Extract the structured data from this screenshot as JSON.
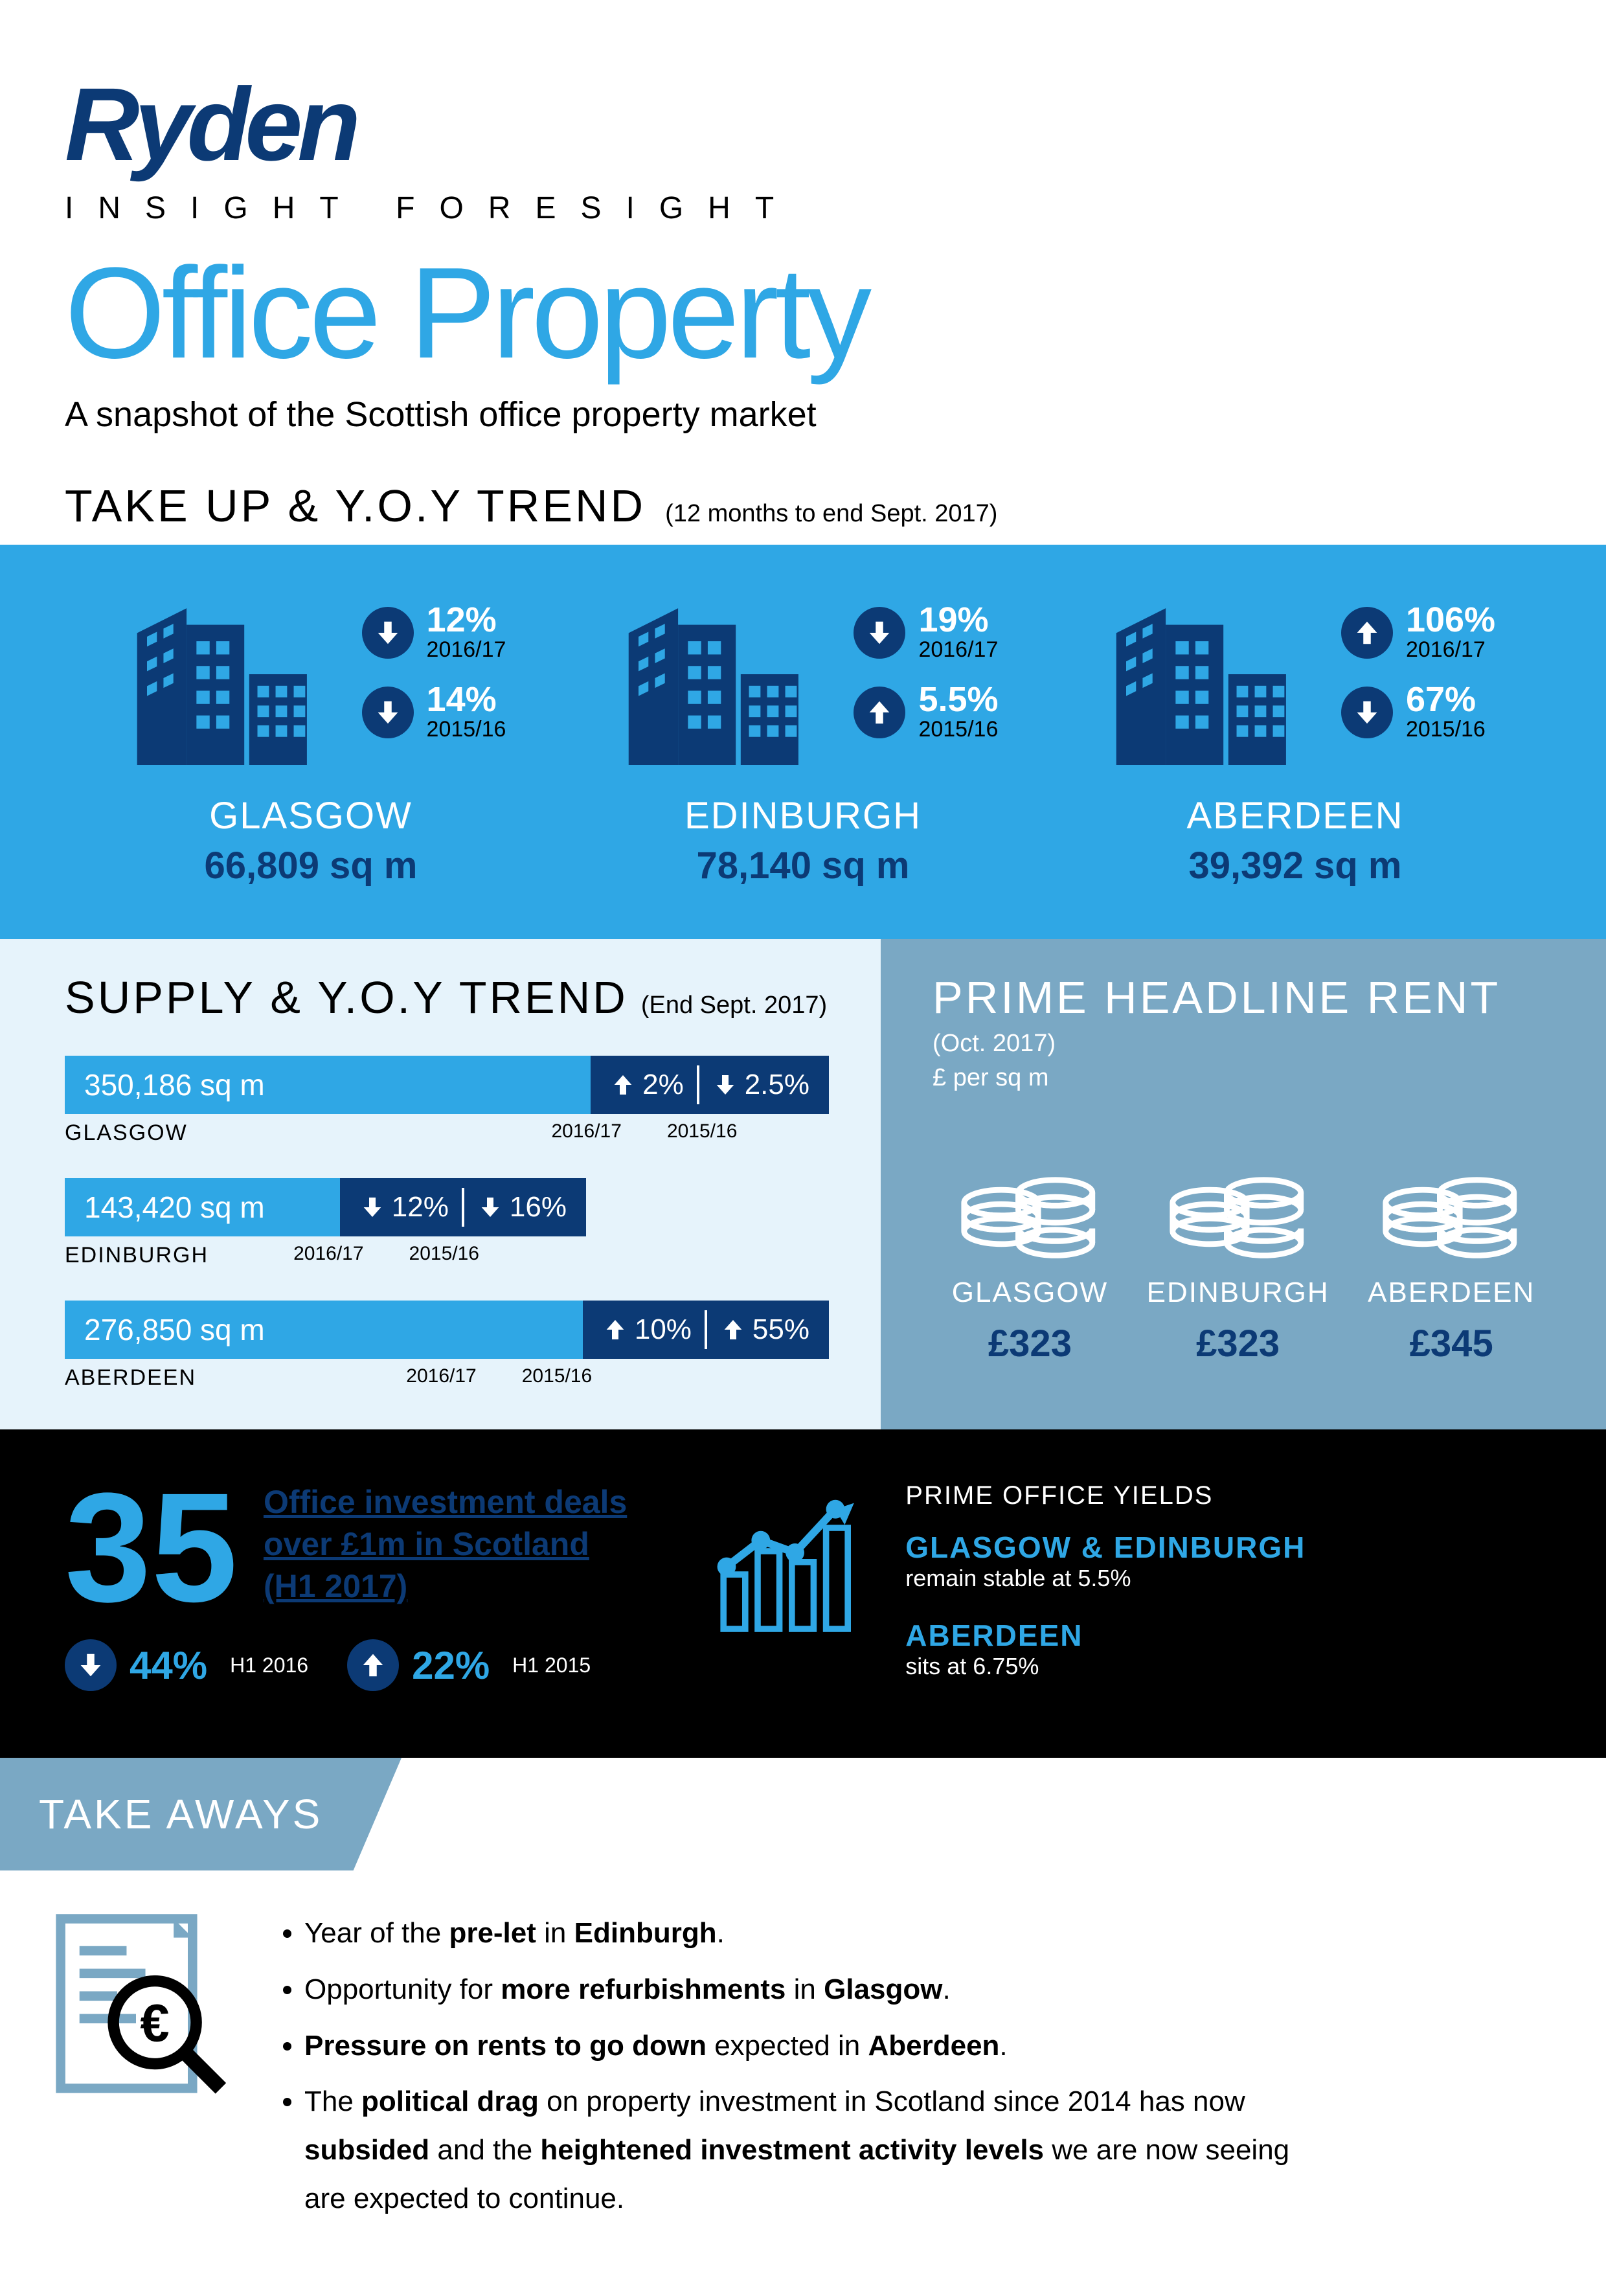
{
  "header": {
    "brand": "Ryden",
    "tagline": "INSIGHT FORESIGHT",
    "title": "Office Property",
    "snapshot": "A snapshot of the Scottish office property market"
  },
  "takeup": {
    "title": "TAKE UP & Y.O.Y TREND",
    "subtitle": "(12 months to end Sept. 2017)",
    "band_bg": "#2fa7e5",
    "cities": [
      {
        "name": "GLASGOW",
        "sqm": "66,809 sq m",
        "stats": [
          {
            "dir": "down",
            "pct": "12%",
            "year": "2016/17"
          },
          {
            "dir": "down",
            "pct": "14%",
            "year": "2015/16"
          }
        ]
      },
      {
        "name": "EDINBURGH",
        "sqm": "78,140 sq m",
        "stats": [
          {
            "dir": "down",
            "pct": "19%",
            "year": "2016/17"
          },
          {
            "dir": "up",
            "pct": "5.5%",
            "year": "2015/16"
          }
        ]
      },
      {
        "name": "ABERDEEN",
        "sqm": "39,392 sq m",
        "stats": [
          {
            "dir": "up",
            "pct": "106%",
            "year": "2016/17"
          },
          {
            "dir": "down",
            "pct": "67%",
            "year": "2015/16"
          }
        ]
      }
    ]
  },
  "supply": {
    "title": "SUPPLY & Y.O.Y TREND",
    "subtitle": "(End Sept. 2017)",
    "panel_bg": "#e6f3fb",
    "max_sqm": 400000,
    "bar_light": "#2fa7e5",
    "bar_dark": "#0c3a75",
    "rows": [
      {
        "city": "GLASGOW",
        "sqm_label": "350,186 sq m",
        "sqm": 350186,
        "changes": [
          {
            "dir": "up",
            "pct": "2%",
            "year": "2016/17"
          },
          {
            "dir": "down",
            "pct": "2.5%",
            "year": "2015/16"
          }
        ]
      },
      {
        "city": "EDINBURGH",
        "sqm_label": "143,420 sq m",
        "sqm": 143420,
        "changes": [
          {
            "dir": "down",
            "pct": "12%",
            "year": "2016/17"
          },
          {
            "dir": "down",
            "pct": "16%",
            "year": "2015/16"
          }
        ]
      },
      {
        "city": "ABERDEEN",
        "sqm_label": "276,850 sq m",
        "sqm": 276850,
        "changes": [
          {
            "dir": "up",
            "pct": "10%",
            "year": "2016/17"
          },
          {
            "dir": "up",
            "pct": "55%",
            "year": "2015/16"
          }
        ]
      }
    ]
  },
  "rent": {
    "title": "PRIME HEADLINE RENT",
    "subtitle": "(Oct. 2017)",
    "unit": "£ per sq m",
    "panel_bg": "#7aa8c4",
    "cities": [
      {
        "name": "GLASGOW",
        "value": "£323"
      },
      {
        "name": "EDINBURGH",
        "value": "£323"
      },
      {
        "name": "ABERDEEN",
        "value": "£345"
      }
    ]
  },
  "investment": {
    "band_bg": "#000000",
    "big_number": "35",
    "lines": [
      "Office investment deals",
      "over £1m in Scotland",
      "(H1 2017)"
    ],
    "changes": [
      {
        "dir": "down",
        "pct": "44%",
        "year": "H1 2016"
      },
      {
        "dir": "up",
        "pct": "22%",
        "year": "H1 2015"
      }
    ],
    "yields": {
      "title": "PRIME OFFICE YIELDS",
      "rows": [
        {
          "cities": "GLASGOW & EDINBURGH",
          "desc": "remain stable at 5.5%"
        },
        {
          "cities": "ABERDEEN",
          "desc": "sits at 6.75%"
        }
      ]
    }
  },
  "takeaways": {
    "label": "TAKE AWAYS",
    "panel_bg": "#7aa8c4",
    "items_html": [
      "Year of the <b>pre-let</b> in <b>Edinburgh</b>.",
      "Opportunity for <b>more refurbishments</b> in <b>Glasgow</b>.",
      "<b>Pressure on rents to go down</b> expected in <b>Aberdeen</b>.",
      "The <b>political drag</b> on property investment in Scotland since 2014 has now <b>subsided</b> and the <b>heightened investment activity levels</b> we are now seeing are expected to continue."
    ]
  },
  "colors": {
    "brand_blue": "#0c3a75",
    "accent_blue": "#2fa7e5",
    "steel_blue": "#7aa8c4",
    "light_blue": "#e6f3fb"
  }
}
